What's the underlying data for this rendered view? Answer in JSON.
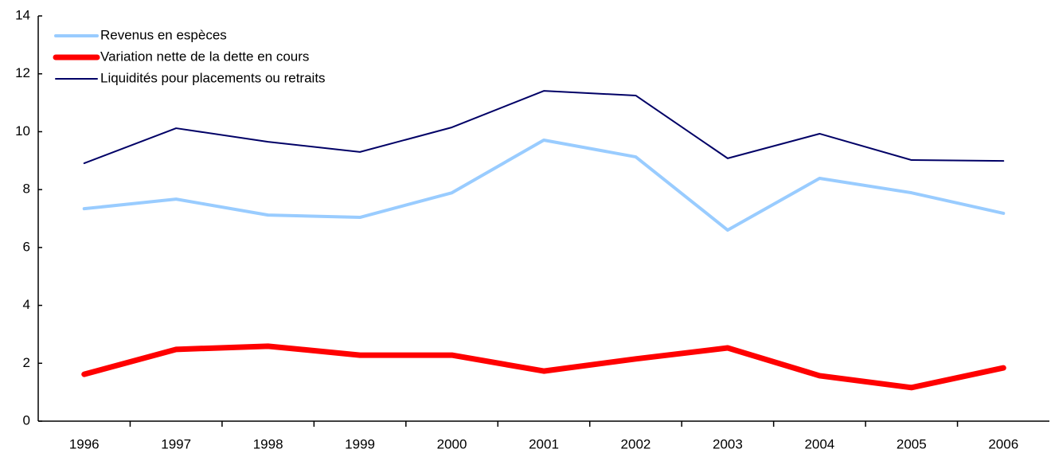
{
  "chart_data": {
    "type": "line",
    "categories": [
      "1996",
      "1997",
      "1998",
      "1999",
      "2000",
      "2001",
      "2002",
      "2003",
      "2004",
      "2005",
      "2006"
    ],
    "series": [
      {
        "name": "Revenus en espèces",
        "color": "#99ccff",
        "values": [
          7.34,
          7.67,
          7.12,
          7.04,
          7.89,
          9.71,
          9.13,
          6.6,
          8.39,
          7.89,
          7.18
        ]
      },
      {
        "name": "Variation nette de la dette en cours",
        "color": "#ff0000",
        "values": [
          1.62,
          2.48,
          2.59,
          2.28,
          2.28,
          1.73,
          2.15,
          2.53,
          1.57,
          1.16,
          1.84
        ]
      },
      {
        "name": "Liquidités pour placements ou retraits",
        "color": "#000066",
        "values": [
          8.91,
          10.12,
          9.65,
          9.3,
          10.15,
          11.41,
          11.25,
          9.08,
          9.93,
          9.02,
          8.99
        ]
      }
    ],
    "ylim": [
      0,
      14
    ],
    "yticks": [
      0,
      2,
      4,
      6,
      8,
      10,
      12,
      14
    ],
    "grid": false,
    "legend": "top-left"
  }
}
